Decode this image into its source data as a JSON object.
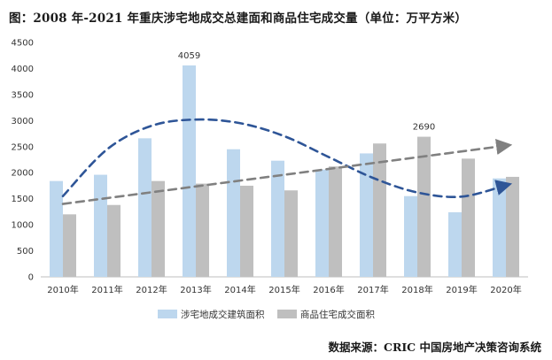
{
  "title": "图：2008 年-2021 年重庆涉宅地成交总建面和商品住宅成交量（单位：万平方米）",
  "source": "数据来源：CRIC 中国房地产决策咨询系统",
  "chart_data": {
    "type": "bar",
    "categories": [
      "2010年",
      "2011年",
      "2012年",
      "2013年",
      "2014年",
      "2015年",
      "2016年",
      "2017年",
      "2018年",
      "2019年",
      "2020年"
    ],
    "series": [
      {
        "name": "涉宅地成交建筑面积",
        "color": "#bdd7ee",
        "values": [
          1840,
          1960,
          2660,
          4059,
          2450,
          2230,
          2060,
          2370,
          1550,
          1240,
          1890
        ]
      },
      {
        "name": "商品住宅成交面积",
        "color": "#bfbfbf",
        "values": [
          1200,
          1380,
          1840,
          1790,
          1750,
          1660,
          2120,
          2560,
          2690,
          2270,
          1920
        ]
      }
    ],
    "data_labels": [
      {
        "series": 0,
        "category": "2013年",
        "text": "4059"
      },
      {
        "series": 1,
        "category": "2018年",
        "text": "2690"
      }
    ],
    "yticks": [
      "0",
      "500",
      "1000",
      "1500",
      "2000",
      "2500",
      "3000",
      "3500",
      "4000",
      "4500"
    ],
    "ylim": [
      0,
      4500
    ],
    "grid": false,
    "legend_position": "bottom",
    "trendlines": [
      {
        "color": "#2e5597",
        "dashed": true,
        "arrow": true,
        "points": [
          [
            0,
            1550
          ],
          [
            1,
            2450
          ],
          [
            2,
            2900
          ],
          [
            3,
            3020
          ],
          [
            4,
            2950
          ],
          [
            5,
            2700
          ],
          [
            6,
            2300
          ],
          [
            7,
            1900
          ],
          [
            8,
            1620
          ],
          [
            9,
            1540
          ],
          [
            10,
            1760
          ]
        ]
      },
      {
        "color": "#808080",
        "dashed": true,
        "arrow": true,
        "points": [
          [
            0,
            1400
          ],
          [
            10,
            2520
          ]
        ]
      }
    ]
  }
}
